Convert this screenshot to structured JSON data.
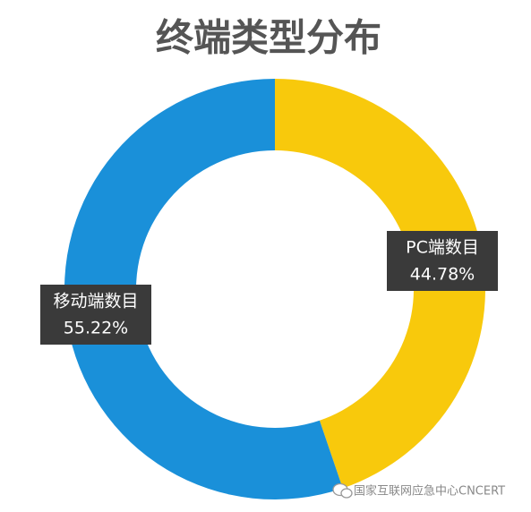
{
  "chart_data": {
    "type": "donut",
    "title": "终端类型分布",
    "categories": [
      "PC端数目",
      "移动端数目"
    ],
    "values": [
      44.78,
      55.22
    ],
    "value_labels": [
      "44.78%",
      "55.22%"
    ],
    "colors": [
      "#f8c90c",
      "#1a90d9"
    ]
  },
  "watermark": "国家互联网应急中心CNCERT"
}
